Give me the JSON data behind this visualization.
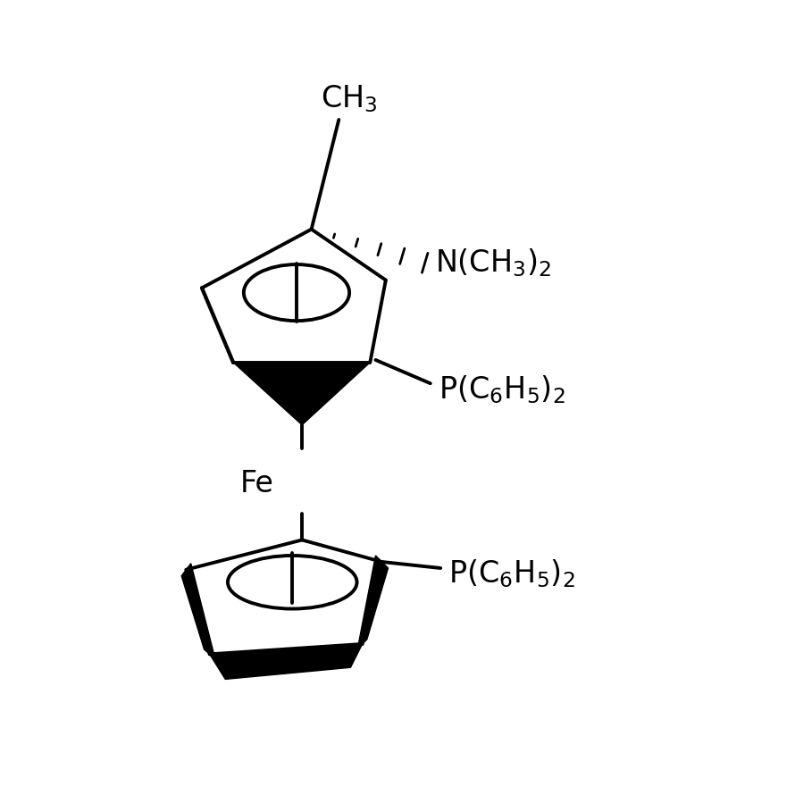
{
  "background_color": "#ffffff",
  "line_color": "#000000",
  "line_width": 2.8,
  "text_color": "#000000",
  "figsize": [
    8.9,
    8.9
  ],
  "dpi": 100
}
